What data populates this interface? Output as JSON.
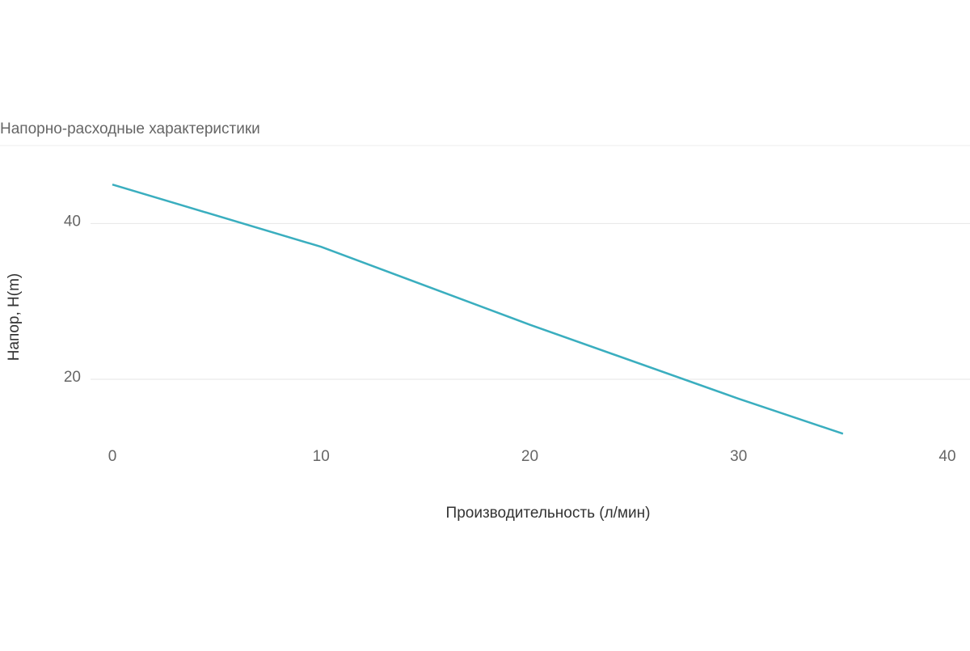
{
  "chart_data": {
    "type": "line",
    "title": "Напорно-расходные характеристики",
    "x_label": "Производительность (л/мин)",
    "y_label": "Напор, H(m)",
    "x": [
      0,
      10,
      20,
      30,
      35
    ],
    "series": [
      {
        "name": "H",
        "color": "#3aaebf",
        "values": [
          45,
          37,
          27,
          17.5,
          13
        ]
      }
    ],
    "xlim": [
      0,
      40
    ],
    "xticks": [
      0,
      10,
      20,
      30,
      40
    ],
    "ylim": [
      12,
      50
    ],
    "yticks": [
      20,
      40
    ],
    "grid": true
  }
}
